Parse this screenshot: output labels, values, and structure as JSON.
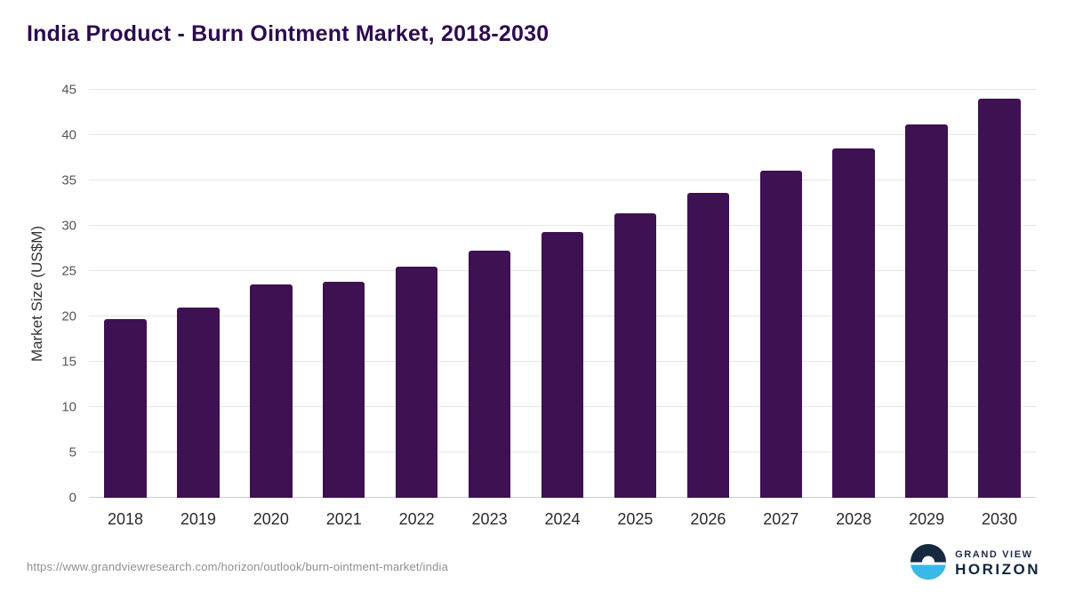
{
  "title": "India Product - Burn Ointment Market, 2018-2030",
  "footer": {
    "url": "https://www.grandviewresearch.com/horizon/outlook/burn-ointment-market/india",
    "brand_line1": "GRAND VIEW",
    "brand_line2": "HORIZON"
  },
  "colors": {
    "bar": "#3e1152",
    "title": "#2d0a50",
    "grid": "#e4e4e4",
    "logo_dark": "#16293f",
    "logo_cyan": "#38b9e9"
  },
  "chart_data": {
    "type": "bar",
    "categories": [
      "2018",
      "2019",
      "2020",
      "2021",
      "2022",
      "2023",
      "2024",
      "2025",
      "2026",
      "2027",
      "2028",
      "2029",
      "2030"
    ],
    "values": [
      19.7,
      21.0,
      23.5,
      23.8,
      25.5,
      27.3,
      29.3,
      31.4,
      33.6,
      36.1,
      38.5,
      41.2,
      44.0
    ],
    "title": "India Product - Burn Ointment Market, 2018-2030",
    "xlabel": "",
    "ylabel": "Market Size (US$M)",
    "ylim": [
      0,
      45
    ],
    "ytick_step": 5,
    "grid": true,
    "legend": "none"
  }
}
